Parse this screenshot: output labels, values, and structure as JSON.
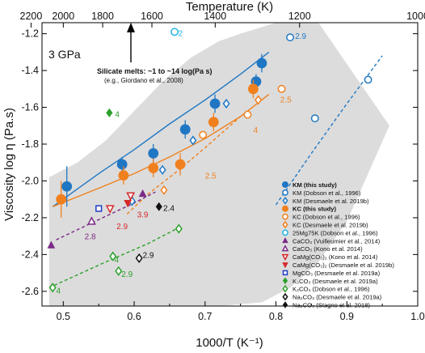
{
  "chart_data": {
    "type": "scatter",
    "xlabel": "1000/T (K⁻¹)",
    "x2label": "Temperature (K)",
    "ylabel": "Viscosity log η (Pa.s)",
    "xlim": [
      0.47,
      1.0
    ],
    "ylim": [
      -2.68,
      -1.14
    ],
    "x_ticks": [
      "0.5",
      "0.6",
      "0.7",
      "0.8",
      "0.9",
      "1.0"
    ],
    "x_tick_values": [
      0.5,
      0.6,
      0.7,
      0.8,
      0.9,
      1.0
    ],
    "y_ticks": [
      "-1.2",
      "-1.4",
      "-1.6",
      "-1.8",
      "-2.0",
      "-2.2",
      "-2.4",
      "-2.6"
    ],
    "y_tick_values": [
      -1.2,
      -1.4,
      -1.6,
      -1.8,
      -2.0,
      -2.2,
      -2.4,
      -2.6
    ],
    "top_ticks": [
      {
        "label": "2200",
        "value": 2200
      },
      {
        "label": "2000",
        "value": 2000
      },
      {
        "label": "1800",
        "value": 1800
      },
      {
        "label": "1600",
        "value": 1600
      },
      {
        "label": "1400",
        "value": 1400
      },
      {
        "label": "1200",
        "value": 1200
      },
      {
        "label": "1000",
        "value": 1000
      }
    ],
    "pressure_label": "3 GPa",
    "annotation_text": "Silicate melts: ~1 to ~14 log(Pa s)",
    "annotation_ref": "(e.g., Giordano et al., 2008)",
    "grey_band": {
      "upper": [
        [
          0.48,
          -1.98
        ],
        [
          0.52,
          -1.9
        ],
        [
          0.56,
          -1.78
        ],
        [
          0.6,
          -1.62
        ],
        [
          0.64,
          -1.46
        ],
        [
          0.68,
          -1.33
        ],
        [
          0.72,
          -1.24
        ],
        [
          0.75,
          -1.2
        ],
        [
          0.8,
          -1.14
        ],
        [
          0.86,
          -1.14
        ]
      ],
      "lower": [
        [
          0.96,
          -1.7
        ],
        [
          0.93,
          -1.96
        ],
        [
          0.9,
          -2.22
        ],
        [
          0.86,
          -2.44
        ],
        [
          0.82,
          -2.58
        ],
        [
          0.78,
          -2.66
        ],
        [
          0.72,
          -2.68
        ],
        [
          0.6,
          -2.68
        ],
        [
          0.48,
          -2.68
        ]
      ]
    },
    "fits": [
      {
        "color": "#1f77c4",
        "dash": false,
        "points": [
          [
            0.485,
            -2.14
          ],
          [
            0.55,
            -1.96
          ],
          [
            0.6,
            -1.83
          ],
          [
            0.65,
            -1.69
          ],
          [
            0.7,
            -1.56
          ],
          [
            0.75,
            -1.42
          ],
          [
            0.79,
            -1.3
          ]
        ]
      },
      {
        "color": "#f0801e",
        "dash": false,
        "points": [
          [
            0.485,
            -2.14
          ],
          [
            0.55,
            -2.04
          ],
          [
            0.6,
            -1.96
          ],
          [
            0.65,
            -1.87
          ],
          [
            0.7,
            -1.77
          ],
          [
            0.75,
            -1.65
          ],
          [
            0.79,
            -1.53
          ]
        ]
      },
      {
        "color": "#1f77c4",
        "dash": true,
        "points": [
          [
            0.8,
            -2.13
          ],
          [
            0.85,
            -1.85
          ],
          [
            0.9,
            -1.58
          ],
          [
            0.95,
            -1.32
          ]
        ]
      },
      {
        "color": "#f0801e",
        "dash": true,
        "points": [
          [
            0.59,
            -2.18
          ],
          [
            0.62,
            -2.07
          ],
          [
            0.66,
            -1.95
          ],
          [
            0.7,
            -1.82
          ],
          [
            0.75,
            -1.65
          ]
        ]
      },
      {
        "color": "#7b2a86",
        "dash": true,
        "points": [
          [
            0.49,
            -2.32
          ],
          [
            0.55,
            -2.21
          ],
          [
            0.6,
            -2.12
          ],
          [
            0.63,
            -2.06
          ]
        ]
      },
      {
        "color": "#2ca02c",
        "dash": true,
        "points": [
          [
            0.48,
            -2.58
          ],
          [
            0.56,
            -2.44
          ],
          [
            0.62,
            -2.34
          ],
          [
            0.66,
            -2.26
          ]
        ]
      }
    ],
    "series": [
      {
        "name": "KM (this study)",
        "marker": "circle-filled",
        "color": "#1f77c4",
        "points": [
          {
            "x": 0.505,
            "y": -2.03,
            "err": 0.11
          },
          {
            "x": 0.583,
            "y": -1.91,
            "err": 0.04
          },
          {
            "x": 0.627,
            "y": -1.85,
            "err": 0.05
          },
          {
            "x": 0.672,
            "y": -1.72,
            "err": 0.05
          },
          {
            "x": 0.714,
            "y": -1.58,
            "err": 0.05
          },
          {
            "x": 0.772,
            "y": -1.46,
            "err": 0.04
          },
          {
            "x": 0.78,
            "y": -1.36,
            "err": 0.05
          }
        ]
      },
      {
        "name": "KM (Dobson et al., 1996)",
        "marker": "circle-open",
        "color": "#1f77c4",
        "points": [
          {
            "x": 0.855,
            "y": -1.66
          },
          {
            "x": 0.93,
            "y": -1.45
          },
          {
            "x": 0.82,
            "y": -1.22
          }
        ]
      },
      {
        "name": "KM (Desmaele et al. 2019b)",
        "marker": "diamond-open",
        "color": "#1f77c4",
        "points": [
          {
            "x": 0.597,
            "y": -2.11
          },
          {
            "x": 0.64,
            "y": -1.94
          },
          {
            "x": 0.683,
            "y": -1.78
          },
          {
            "x": 0.73,
            "y": -1.58
          }
        ]
      },
      {
        "name": "KC (this study)",
        "marker": "circle-filled",
        "color": "#f0801e",
        "points": [
          {
            "x": 0.497,
            "y": -2.1,
            "err": 0.1
          },
          {
            "x": 0.585,
            "y": -1.97,
            "err": 0.05
          },
          {
            "x": 0.627,
            "y": -1.93,
            "err": 0.05
          },
          {
            "x": 0.665,
            "y": -1.91,
            "err": 0.06
          },
          {
            "x": 0.712,
            "y": -1.68,
            "err": 0.05
          },
          {
            "x": 0.768,
            "y": -1.5,
            "err": 0.05
          }
        ]
      },
      {
        "name": "KC (Dobson et al., 1996)",
        "marker": "circle-open",
        "color": "#f0801e",
        "points": [
          {
            "x": 0.697,
            "y": -1.75
          },
          {
            "x": 0.76,
            "y": -1.64
          },
          {
            "x": 0.808,
            "y": -1.5
          }
        ]
      },
      {
        "name": "KC (Desmaele et al. 2019b)",
        "marker": "diamond-open",
        "color": "#f0801e",
        "points": [
          {
            "x": 0.642,
            "y": -2.05
          },
          {
            "x": 0.775,
            "y": -1.56
          }
        ]
      },
      {
        "name": "25Mg75K (Dobson et al., 1996)",
        "marker": "circle-open",
        "color": "#22b6e6",
        "points": [
          {
            "x": 0.657,
            "y": -1.19
          }
        ]
      },
      {
        "name": "CaCO₃ (Vuilleumier et al., 2014)",
        "marker": "triangle-up-filled",
        "color": "#7b2a86",
        "points": [
          {
            "x": 0.483,
            "y": -2.35
          },
          {
            "x": 0.612,
            "y": -2.07
          }
        ]
      },
      {
        "name": "CaCO₃ (Kono et al. 2014)",
        "marker": "triangle-up-open",
        "color": "#7b2a86",
        "points": [
          {
            "x": 0.54,
            "y": -2.22
          }
        ]
      },
      {
        "name": "CaMg(CO₃)₂ (Kono et al. 2014)",
        "marker": "triangle-down-open",
        "color": "#d62828",
        "points": [
          {
            "x": 0.595,
            "y": -2.08
          },
          {
            "x": 0.566,
            "y": -2.15
          }
        ]
      },
      {
        "name": "CaMg(CO₃)₂ (Desmaele et al. 2019b)",
        "marker": "triangle-down-filled",
        "color": "#d62828",
        "points": [
          {
            "x": 0.591,
            "y": -2.12
          }
        ]
      },
      {
        "name": "MgCO₃ (Desmaele et al. 2019a)",
        "marker": "square-open",
        "color": "#1f3cc4",
        "points": [
          {
            "x": 0.55,
            "y": -2.15
          }
        ]
      },
      {
        "name": "K₂CO₃ (Desmaele et al. 2019a)",
        "marker": "diamond-filled",
        "color": "#2ca02c",
        "points": [
          {
            "x": 0.565,
            "y": -1.63
          }
        ]
      },
      {
        "name": "K₂CO₃ (Dobson et al., 1996)",
        "marker": "diamond-open",
        "color": "#2ca02c",
        "points": [
          {
            "x": 0.485,
            "y": -2.58
          },
          {
            "x": 0.57,
            "y": -2.41
          },
          {
            "x": 0.578,
            "y": -2.49
          },
          {
            "x": 0.663,
            "y": -2.26
          }
        ]
      },
      {
        "name": "Na₂CO₃ (Desmaele et al. 2019a)",
        "marker": "diamond-open",
        "color": "#111111",
        "points": [
          {
            "x": 0.607,
            "y": -2.42
          }
        ]
      },
      {
        "name": "Na₂CO₃ (Stagno et al. 2018)",
        "marker": "diamond-filled",
        "color": "#111111",
        "points": [
          {
            "x": 0.635,
            "y": -2.14
          }
        ]
      }
    ],
    "data_labels": [
      {
        "text": "2.9",
        "x": 0.827,
        "y": -1.21,
        "color": "#1f77c4"
      },
      {
        "text": "2",
        "x": 0.662,
        "y": -1.195,
        "color": "#22b6e6"
      },
      {
        "text": "2.5",
        "x": 0.806,
        "y": -1.555,
        "color": "#f0801e"
      },
      {
        "text": "4",
        "x": 0.768,
        "y": -1.72,
        "color": "#f0801e"
      },
      {
        "text": "2.5",
        "x": 0.7,
        "y": -1.97,
        "color": "#f0801e"
      },
      {
        "text": "4",
        "x": 0.573,
        "y": -1.635,
        "color": "#2ca02c"
      },
      {
        "text": "2.4",
        "x": 0.641,
        "y": -2.145,
        "color": "#111111"
      },
      {
        "text": "3.9",
        "x": 0.604,
        "y": -2.18,
        "color": "#d62828"
      },
      {
        "text": "2.9",
        "x": 0.575,
        "y": -2.245,
        "color": "#d62828"
      },
      {
        "text": "2.8",
        "x": 0.53,
        "y": -2.3,
        "color": "#7b2a86"
      },
      {
        "text": "2.9",
        "x": 0.612,
        "y": -2.4,
        "color": "#111111"
      },
      {
        "text": "4",
        "x": 0.49,
        "y": -2.595,
        "color": "#2ca02c"
      },
      {
        "text": "4",
        "x": 0.572,
        "y": -2.425,
        "color": "#2ca02c"
      },
      {
        "text": "2.9",
        "x": 0.582,
        "y": -2.505,
        "color": "#2ca02c"
      }
    ]
  }
}
